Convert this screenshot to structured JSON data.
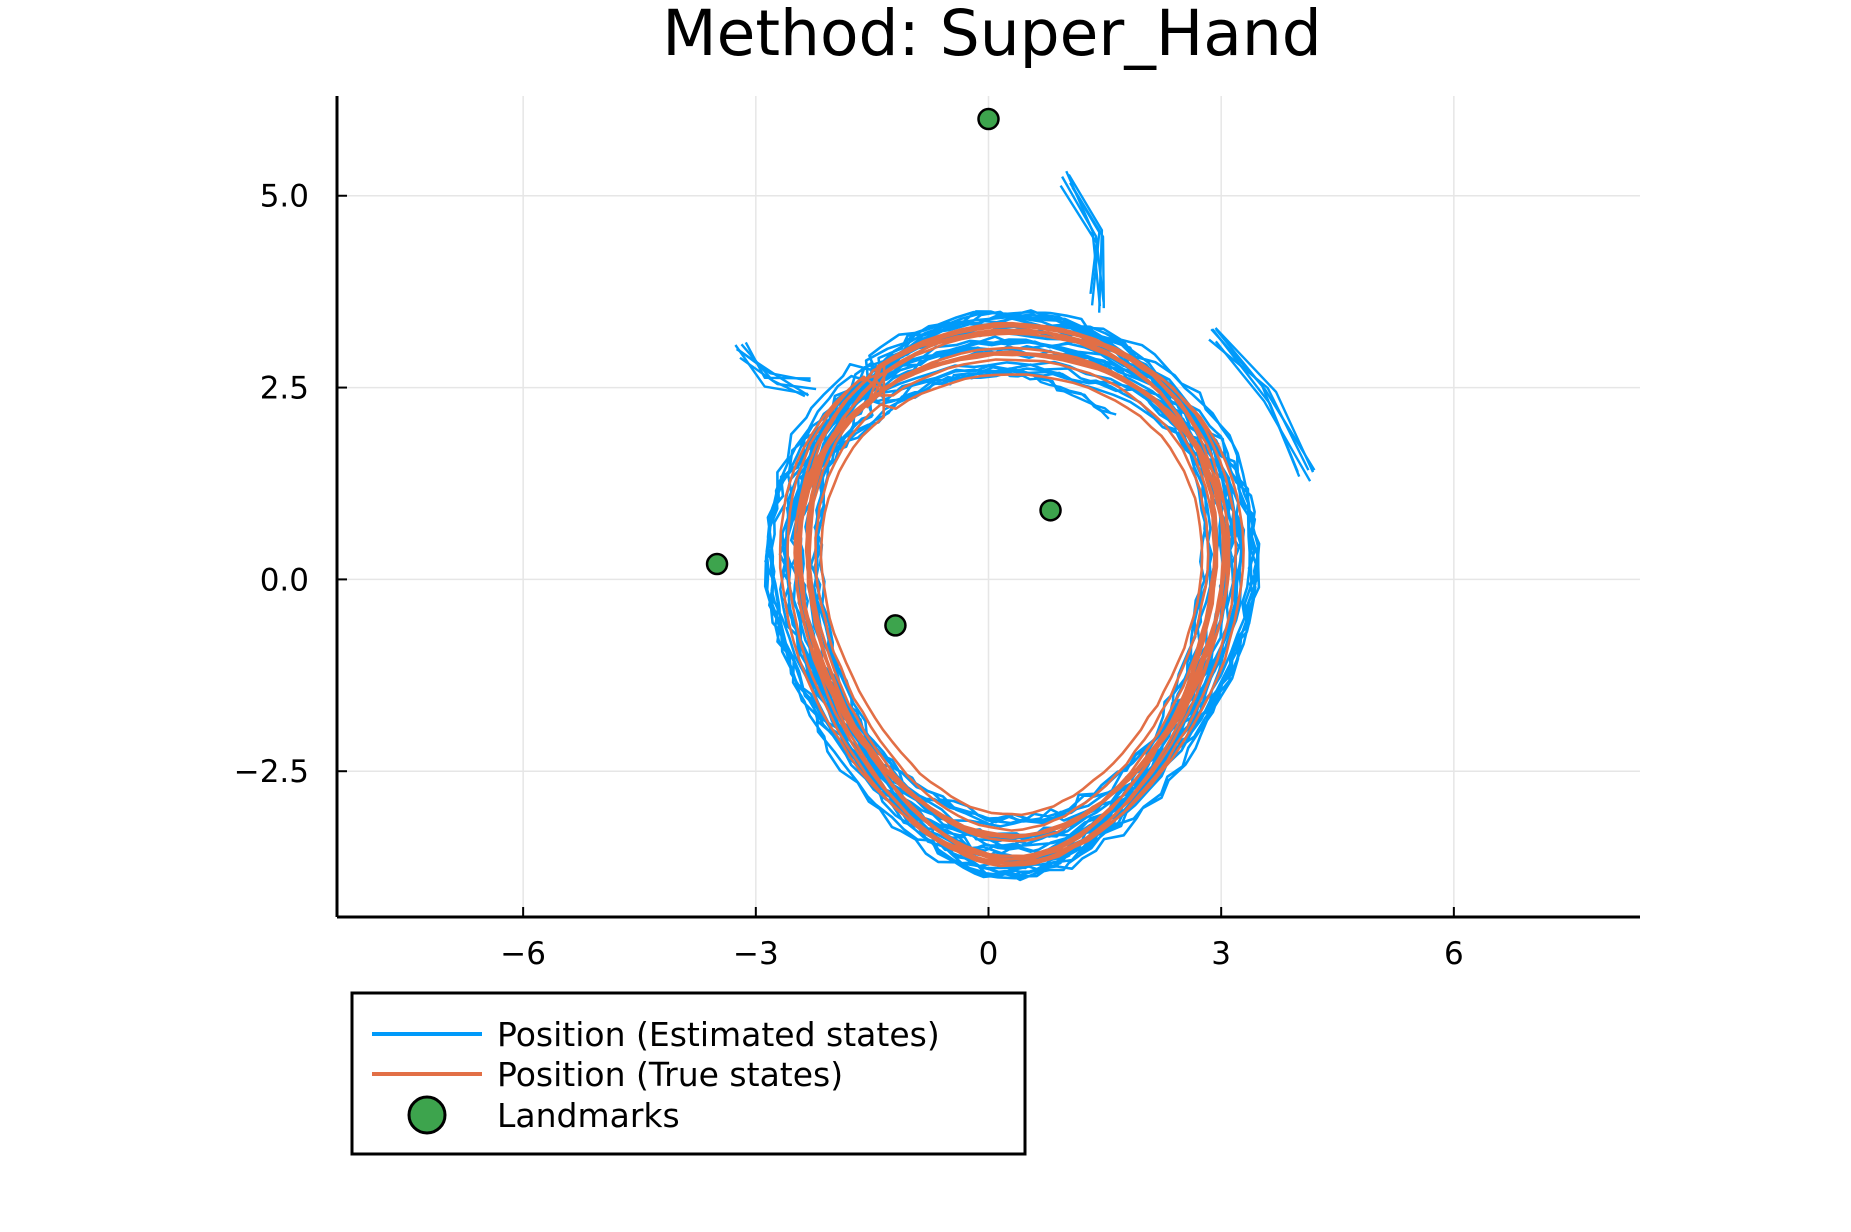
{
  "chart_data": {
    "type": "line",
    "title": "Method: Super_Hand",
    "xlabel": "",
    "ylabel": "",
    "xlim": [
      -8.4,
      8.4
    ],
    "ylim": [
      -4.4,
      6.3
    ],
    "xticks": [
      -6,
      -3,
      0,
      3,
      6
    ],
    "xtick_labels": [
      "−6",
      "−3",
      "0",
      "3",
      "6"
    ],
    "yticks": [
      -2.5,
      0.0,
      2.5,
      5.0
    ],
    "ytick_labels": [
      "−2.5",
      "0.0",
      "2.5",
      "5.0"
    ],
    "grid": true,
    "legend_position": "bottom-left, outside below the axes",
    "series": [
      {
        "name": "Position (Estimated states)",
        "kind": "line",
        "color": "#009AFA",
        "description_loop": {
          "center": [
            0.3,
            -0.2
          ],
          "radius_x": 2.8,
          "radius_y": 3.3,
          "laps": 24
        },
        "start_tail": [
          [
            -3.2,
            3.0
          ],
          [
            -2.8,
            2.6
          ],
          [
            -2.3,
            2.5
          ]
        ],
        "end_tail": [
          [
            2.9,
            3.2
          ],
          [
            3.6,
            2.4
          ],
          [
            4.1,
            1.3
          ]
        ],
        "top_spike": [
          [
            1.4,
            3.6
          ],
          [
            1.4,
            4.5
          ],
          [
            1.0,
            5.2
          ]
        ]
      },
      {
        "name": "Position (True states)",
        "kind": "line",
        "color": "#E26F46",
        "description_loop": {
          "center": [
            0.3,
            -0.2
          ],
          "radius_x": 2.7,
          "radius_y": 3.2,
          "laps": 14
        }
      },
      {
        "name": "Landmarks",
        "kind": "scatter",
        "color": "#3DA44D",
        "points": [
          {
            "x": 0.0,
            "y": 6.0
          },
          {
            "x": -3.5,
            "y": 0.2
          },
          {
            "x": 0.8,
            "y": 0.9
          },
          {
            "x": -1.2,
            "y": -0.6
          }
        ]
      }
    ]
  }
}
